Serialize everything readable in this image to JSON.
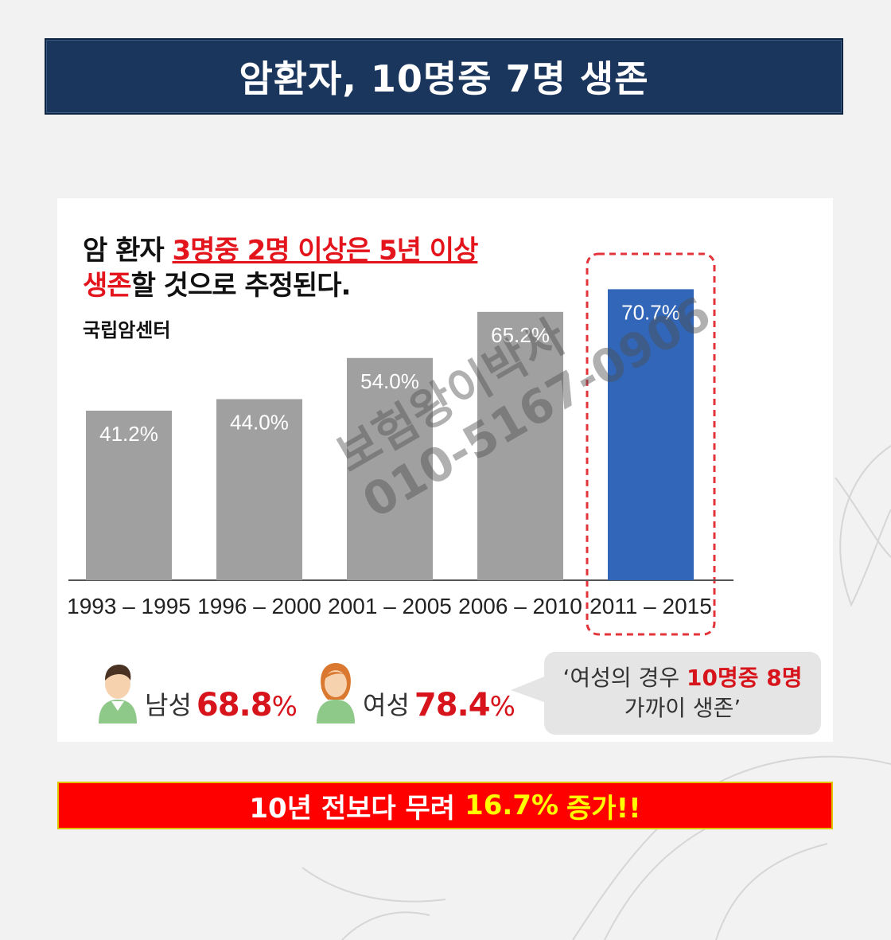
{
  "title": "암환자, 10명중 7명 생존",
  "headline": {
    "prefix": "암 환자 ",
    "highlight1": "3명중 2명 이상은 5년 이상",
    "highlight2": "생존",
    "suffix": "할 것으로 추정된다."
  },
  "source": "국립암센터",
  "watermark": {
    "line1": "보험왕이박사",
    "line2": "010-5167-0906"
  },
  "chart_data": {
    "type": "bar",
    "categories": [
      "1993 – 1995",
      "1996 – 2000",
      "2001 – 2005",
      "2006 – 2010",
      "2011 – 2015"
    ],
    "values": [
      41.2,
      44.0,
      54.0,
      65.2,
      70.7
    ],
    "value_labels": [
      "41.2%",
      "44.0%",
      "54.0%",
      "65.2%",
      "70.7%"
    ],
    "highlight_index": 4,
    "colors": {
      "bar": "#a0a0a0",
      "highlight": "#3166b8",
      "highlight_frame": "#e3343b"
    },
    "ylim": [
      0,
      80
    ]
  },
  "legend": {
    "male": {
      "label": "남성",
      "value": "68.8",
      "unit": "%"
    },
    "female": {
      "label": "여성",
      "value": "78.4",
      "unit": "%"
    }
  },
  "bubble": {
    "prefix": "‘여성의 경우 ",
    "highlight": "10명중 8명",
    "line2": "가까이 생존’"
  },
  "bottom_banner": {
    "text": "10년 전보다 무려",
    "highlight": "16.7%",
    "suffix": "증가!!"
  },
  "colors": {
    "navy": "#1b365d",
    "red": "#e3141b",
    "yellow": "#ffff00"
  }
}
